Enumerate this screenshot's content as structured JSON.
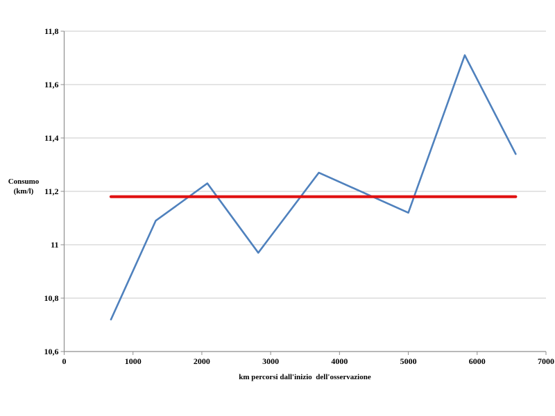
{
  "chart_data": {
    "type": "line",
    "title": "",
    "xlabel": "km percorsi dall'inizio  dell'osservazione",
    "ylabel": "Consumo (km/l)",
    "ylabel_lines": [
      "Consumo",
      "(km/l)"
    ],
    "x": [
      680,
      1330,
      2080,
      2820,
      3700,
      5000,
      5820,
      6560
    ],
    "series": [
      {
        "type": "line",
        "color": "#4f81bd",
        "values": [
          10.72,
          11.09,
          11.23,
          10.97,
          11.27,
          11.12,
          11.71,
          11.34
        ]
      },
      {
        "type": "constant-line",
        "color": "#e01010",
        "value": 11.18,
        "x_start": 680,
        "x_end": 6560
      }
    ],
    "xlim": [
      0,
      7000
    ],
    "ylim": [
      10.6,
      11.8
    ],
    "x_ticks": [
      0,
      1000,
      2000,
      3000,
      4000,
      5000,
      6000,
      7000
    ],
    "x_tick_labels": [
      "0",
      "1000",
      "2000",
      "3000",
      "4000",
      "5000",
      "6000",
      "7000"
    ],
    "y_ticks": [
      10.6,
      10.8,
      11,
      11.2,
      11.4,
      11.6,
      11.8
    ],
    "y_tick_labels": [
      "10,6",
      "10,8",
      "11",
      "11,2",
      "11,4",
      "11,6",
      "11,8"
    ],
    "grid": "horizontal-only",
    "legend": "none",
    "colors": {
      "grid": "#c8c8c8",
      "axis": "#8e8e8e",
      "text": "#000000",
      "background": "#ffffff"
    }
  }
}
